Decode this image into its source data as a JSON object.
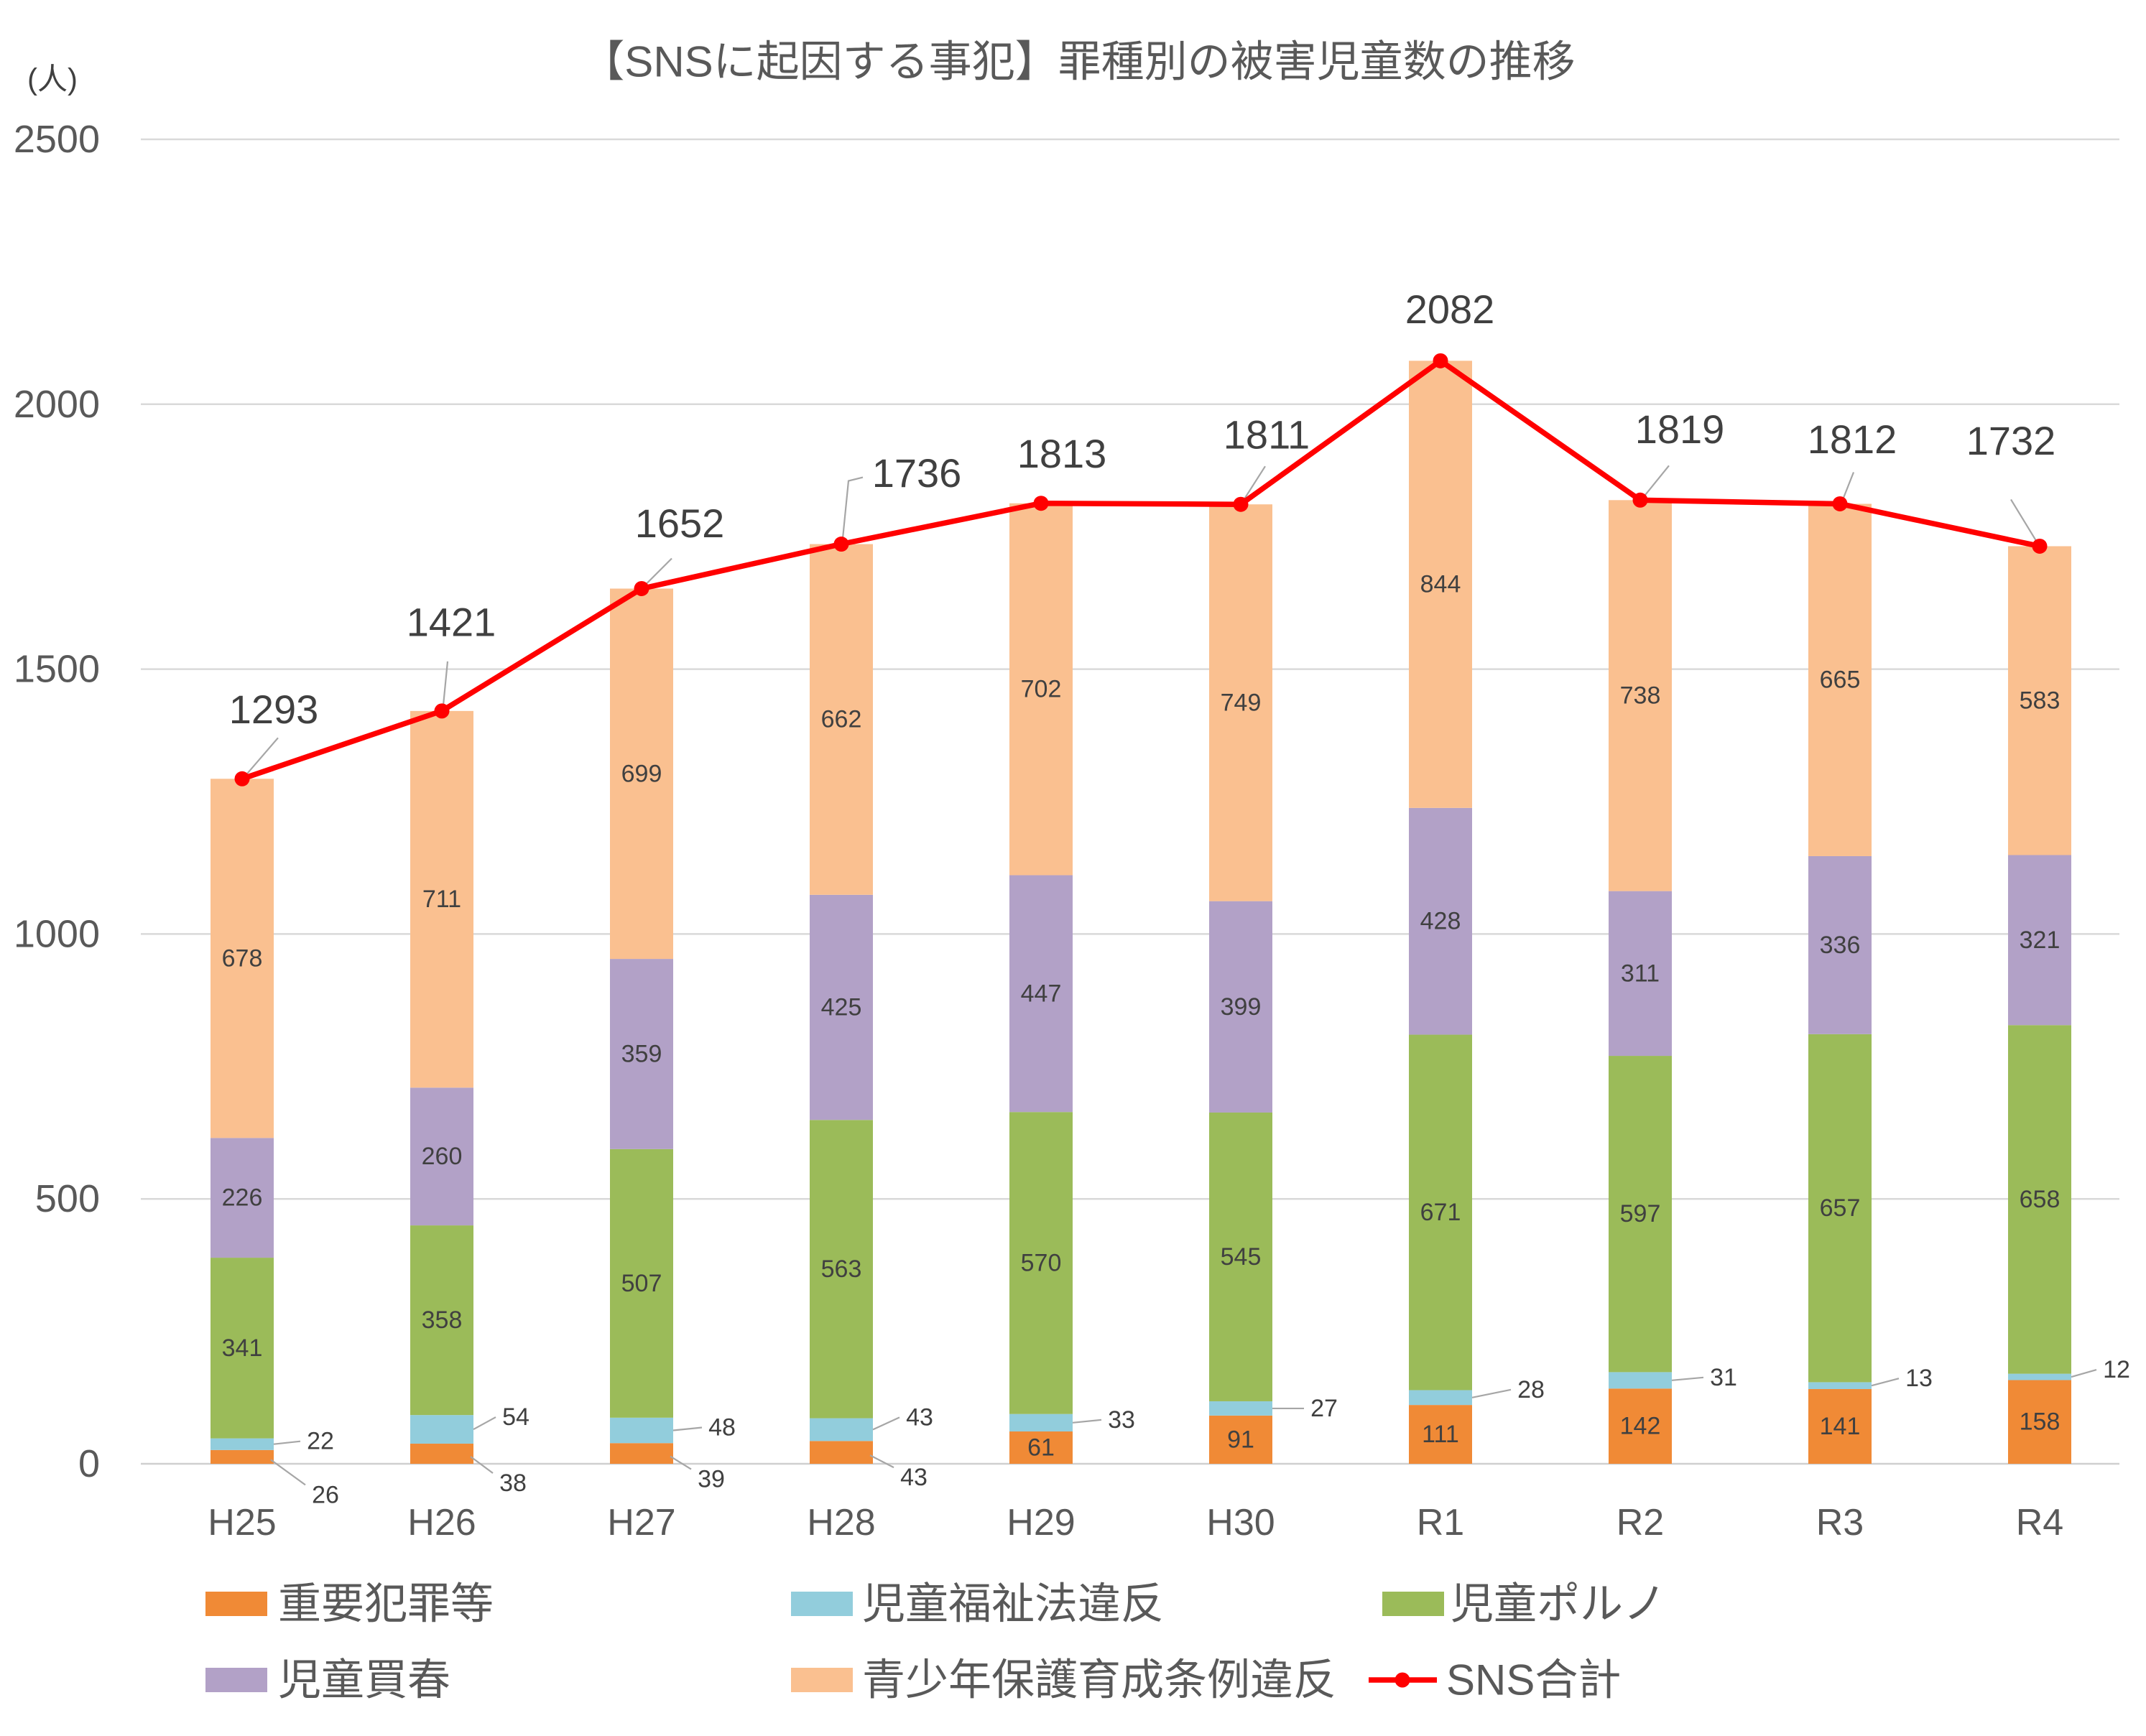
{
  "chart_data": {
    "type": "bar",
    "stacked": true,
    "title": "【SNSに起因する事犯】罪種別の被害児童数の推移",
    "ylabel": "(人)",
    "ylim": [
      0,
      2500
    ],
    "yticks": [
      0,
      500,
      1000,
      1500,
      2000,
      2500
    ],
    "grid": true,
    "legend": "bottom",
    "categories": [
      "H25",
      "H26",
      "H27",
      "H28",
      "H29",
      "H30",
      "R1",
      "R2",
      "R3",
      "R4"
    ],
    "series": [
      {
        "name": "重要犯罪等",
        "type": "bar",
        "color": "#F08A36",
        "values": [
          26,
          38,
          39,
          43,
          61,
          91,
          111,
          142,
          141,
          158
        ]
      },
      {
        "name": "児童福祉法違反",
        "type": "bar",
        "color": "#92CDDC",
        "values": [
          22,
          54,
          48,
          43,
          33,
          27,
          28,
          31,
          13,
          12
        ]
      },
      {
        "name": "児童ポルノ",
        "type": "bar",
        "color": "#9BBB59",
        "values": [
          341,
          358,
          507,
          563,
          570,
          545,
          671,
          597,
          657,
          658
        ]
      },
      {
        "name": "児童買春",
        "type": "bar",
        "color": "#B2A1C7",
        "values": [
          226,
          260,
          359,
          425,
          447,
          399,
          428,
          311,
          336,
          321
        ]
      },
      {
        "name": "青少年保護育成条例違反",
        "type": "bar",
        "color": "#FAC090",
        "values": [
          678,
          711,
          699,
          662,
          702,
          749,
          844,
          738,
          665,
          583
        ]
      },
      {
        "name": "SNS合計",
        "type": "line",
        "color": "#FF0000",
        "values": [
          1293,
          1421,
          1652,
          1736,
          1813,
          1811,
          2082,
          1819,
          1812,
          1732
        ]
      }
    ]
  }
}
